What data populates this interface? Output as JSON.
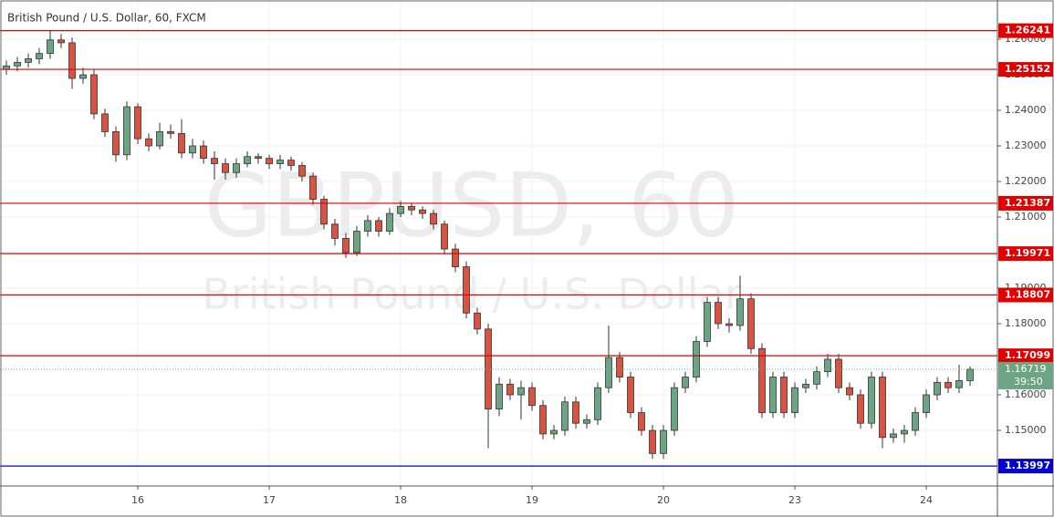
{
  "chart_data": {
    "type": "candlestick",
    "title": "British Pound / U.S. Dollar, 60, FXCM",
    "watermark": "GBPUSD, 60",
    "watermark_subtitle": "British Pound / U.S. Dollar",
    "categories": [
      null,
      null,
      null,
      null,
      null,
      null,
      null,
      null,
      null,
      null,
      null,
      null,
      "16",
      null,
      null,
      null,
      null,
      null,
      null,
      null,
      null,
      null,
      null,
      null,
      "17",
      null,
      null,
      null,
      null,
      null,
      null,
      null,
      null,
      null,
      null,
      null,
      "18",
      null,
      null,
      null,
      null,
      null,
      null,
      null,
      null,
      null,
      null,
      null,
      "19",
      null,
      null,
      null,
      null,
      null,
      null,
      null,
      null,
      null,
      null,
      null,
      "20",
      null,
      null,
      null,
      null,
      null,
      null,
      null,
      null,
      null,
      null,
      null,
      "23",
      null,
      null,
      null,
      null,
      null,
      null,
      null,
      null,
      null,
      null,
      null,
      "24",
      null,
      null,
      null,
      null
    ],
    "open": [
      1.2515,
      1.2525,
      1.2535,
      1.2545,
      1.256,
      1.2598,
      1.259,
      1.249,
      1.25,
      1.239,
      1.234,
      1.2275,
      1.241,
      1.232,
      1.23,
      1.234,
      1.2335,
      1.228,
      1.23,
      1.2265,
      1.225,
      1.2225,
      1.225,
      1.227,
      1.2265,
      1.225,
      1.226,
      1.2245,
      1.2215,
      1.215,
      1.208,
      1.204,
      1.2,
      1.206,
      1.209,
      1.206,
      1.211,
      1.213,
      1.212,
      1.211,
      1.208,
      1.201,
      1.196,
      1.183,
      1.1785,
      1.156,
      1.163,
      1.16,
      1.162,
      1.157,
      1.149,
      1.15,
      1.158,
      1.152,
      1.153,
      1.162,
      1.1705,
      1.165,
      1.155,
      1.15,
      1.1435,
      1.15,
      1.162,
      1.165,
      1.175,
      1.186,
      1.18,
      1.1795,
      1.187,
      1.173,
      1.155,
      1.165,
      1.155,
      1.162,
      1.163,
      1.1665,
      1.17,
      1.162,
      1.16,
      1.152,
      1.165,
      1.148,
      1.149,
      1.15,
      1.155,
      1.16,
      1.1635,
      1.162,
      1.164
    ],
    "high": [
      1.254,
      1.255,
      1.256,
      1.2575,
      1.2625,
      1.2615,
      1.2605,
      1.252,
      1.2515,
      1.2405,
      1.2355,
      1.2425,
      1.242,
      1.2335,
      1.2365,
      1.236,
      1.2375,
      1.232,
      1.2315,
      1.2285,
      1.2265,
      1.2265,
      1.2285,
      1.228,
      1.2275,
      1.2275,
      1.227,
      1.2255,
      1.2225,
      1.216,
      1.2095,
      1.2055,
      1.2075,
      1.2105,
      1.21,
      1.2125,
      1.2145,
      1.214,
      1.213,
      1.212,
      1.209,
      1.2025,
      1.1975,
      1.1845,
      1.18,
      1.165,
      1.1645,
      1.164,
      1.1635,
      1.1585,
      1.1515,
      1.1595,
      1.1595,
      1.1545,
      1.1635,
      1.1795,
      1.172,
      1.1665,
      1.1565,
      1.1515,
      1.1515,
      1.1635,
      1.1665,
      1.1765,
      1.1875,
      1.1875,
      1.1815,
      1.1935,
      1.1885,
      1.1745,
      1.1665,
      1.1665,
      1.1635,
      1.1645,
      1.168,
      1.1715,
      1.1715,
      1.1635,
      1.1615,
      1.1665,
      1.1665,
      1.1505,
      1.1515,
      1.1565,
      1.1615,
      1.165,
      1.165,
      1.1685,
      1.168
    ],
    "low": [
      1.25,
      1.251,
      1.252,
      1.253,
      1.2545,
      1.2575,
      1.246,
      1.2475,
      1.2375,
      1.2325,
      1.2255,
      1.226,
      1.2305,
      1.2285,
      1.229,
      1.232,
      1.2265,
      1.2265,
      1.225,
      1.2205,
      1.2205,
      1.221,
      1.224,
      1.225,
      1.2235,
      1.2235,
      1.223,
      1.22,
      1.2135,
      1.2065,
      1.202,
      1.1985,
      1.199,
      1.2045,
      1.2045,
      1.205,
      1.21,
      1.2105,
      1.2095,
      1.2065,
      1.1995,
      1.1945,
      1.1815,
      1.177,
      1.145,
      1.154,
      1.1585,
      1.153,
      1.1555,
      1.1475,
      1.1475,
      1.1485,
      1.1505,
      1.1505,
      1.1515,
      1.1605,
      1.1635,
      1.1535,
      1.1485,
      1.142,
      1.142,
      1.1485,
      1.1605,
      1.1635,
      1.1735,
      1.1785,
      1.1775,
      1.178,
      1.1715,
      1.1535,
      1.1535,
      1.1535,
      1.1535,
      1.1605,
      1.1615,
      1.165,
      1.1605,
      1.1585,
      1.1505,
      1.1505,
      1.145,
      1.1465,
      1.1465,
      1.1485,
      1.1535,
      1.1585,
      1.1605,
      1.1605,
      1.1625
    ],
    "close": [
      1.2525,
      1.2535,
      1.2545,
      1.256,
      1.2598,
      1.259,
      1.249,
      1.25,
      1.239,
      1.234,
      1.2275,
      1.241,
      1.232,
      1.23,
      1.234,
      1.2335,
      1.228,
      1.23,
      1.2265,
      1.225,
      1.2225,
      1.225,
      1.227,
      1.2265,
      1.225,
      1.226,
      1.2245,
      1.2215,
      1.215,
      1.208,
      1.204,
      1.2,
      1.206,
      1.209,
      1.206,
      1.211,
      1.213,
      1.212,
      1.211,
      1.208,
      1.201,
      1.196,
      1.183,
      1.1785,
      1.156,
      1.163,
      1.16,
      1.162,
      1.157,
      1.149,
      1.15,
      1.158,
      1.152,
      1.153,
      1.162,
      1.1705,
      1.165,
      1.155,
      1.15,
      1.1435,
      1.15,
      1.162,
      1.165,
      1.175,
      1.186,
      1.18,
      1.1795,
      1.187,
      1.173,
      1.155,
      1.165,
      1.155,
      1.162,
      1.163,
      1.1665,
      1.17,
      1.162,
      1.16,
      1.152,
      1.165,
      1.148,
      1.149,
      1.15,
      1.155,
      1.16,
      1.1635,
      1.162,
      1.164,
      1.1672
    ],
    "up_color": "#6ba583",
    "down_color": "#d75442",
    "ylim": [
      1.13436,
      1.27103
    ],
    "yticks": [
      {
        "value": 1.15,
        "label": "1.15000"
      },
      {
        "value": 1.16,
        "label": "1.16000"
      },
      {
        "value": 1.18,
        "label": "1.18000"
      },
      {
        "value": 1.19,
        "label": "1.19000"
      },
      {
        "value": 1.21,
        "label": "1.21000"
      },
      {
        "value": 1.22,
        "label": "1.22000"
      },
      {
        "value": 1.23,
        "label": "1.23000"
      },
      {
        "value": 1.24,
        "label": "1.24000"
      },
      {
        "value": 1.25,
        "label": "1.25000"
      },
      {
        "value": 1.26,
        "label": "1.26000"
      }
    ],
    "grid": true,
    "levels": [
      {
        "value": 1.26241,
        "color": "#e00000"
      },
      {
        "value": 1.25152,
        "color": "#e00000"
      },
      {
        "value": 1.21387,
        "color": "#e00000"
      },
      {
        "value": 1.19971,
        "color": "#e00000"
      },
      {
        "value": 1.18807,
        "color": "#e00000"
      },
      {
        "value": 1.17099,
        "color": "#e00000"
      },
      {
        "value": 1.13997,
        "color": "#0000cc"
      }
    ],
    "last_price": 1.16719,
    "last_price_color": "#6ba583",
    "countdown": "39:50"
  }
}
